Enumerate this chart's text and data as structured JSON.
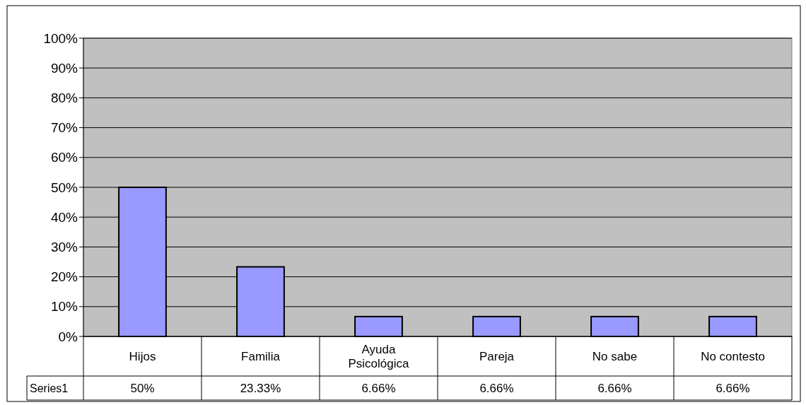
{
  "chart_data": {
    "type": "bar",
    "categories": [
      "Hijos",
      "Familia",
      "Ayuda Psicológica",
      "Pareja",
      "No sabe",
      "No contesto"
    ],
    "series": [
      {
        "name": "Series1",
        "color": "#9999ff",
        "values": [
          50,
          23.33,
          6.66,
          6.66,
          6.66,
          6.66
        ],
        "value_labels": [
          "50%",
          "23.33%",
          "6.66%",
          "6.66%",
          "6.66%",
          "6.66%"
        ]
      }
    ],
    "ylim": [
      0,
      100
    ],
    "yticks": [
      {
        "value": 0,
        "label": "0%"
      },
      {
        "value": 10,
        "label": "10%"
      },
      {
        "value": 20,
        "label": "20%"
      },
      {
        "value": 30,
        "label": "30%"
      },
      {
        "value": 40,
        "label": "40%"
      },
      {
        "value": 50,
        "label": "50%"
      },
      {
        "value": 60,
        "label": "60%"
      },
      {
        "value": 70,
        "label": "70%"
      },
      {
        "value": 80,
        "label": "80%"
      },
      {
        "value": 90,
        "label": "90%"
      },
      {
        "value": 100,
        "label": "100%"
      }
    ],
    "grid": "y",
    "legend": "bottom left"
  }
}
